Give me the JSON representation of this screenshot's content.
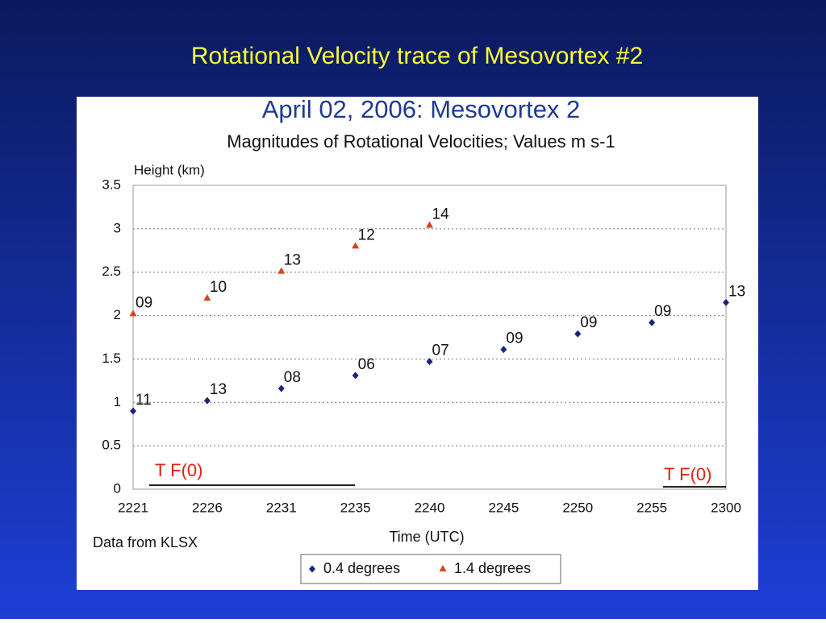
{
  "slide": {
    "title": "Rotational Velocity trace of Mesovortex #2"
  },
  "chart_data": {
    "type": "scatter",
    "title": "April 02, 2006: Mesovortex 2",
    "subtitle": "Magnitudes of Rotational Velocities; Values m s-1",
    "y_label": "Height (km)",
    "x_label": "Time (UTC)",
    "source": "Data from KLSX",
    "annotations": [
      "T F(0)",
      "T F(0)"
    ],
    "categories": [
      "2221",
      "2226",
      "2231",
      "2235",
      "2240",
      "2245",
      "2250",
      "2255",
      "2300"
    ],
    "series": [
      {
        "name": "0.4 degrees",
        "color": "#1a237e",
        "marker": "diamond",
        "values": [
          0.9,
          1.02,
          1.16,
          1.31,
          1.47,
          1.61,
          1.79,
          1.92,
          2.15
        ],
        "point_labels": [
          "11",
          "13",
          "08",
          "06",
          "07",
          "09",
          "09",
          "09",
          "13"
        ]
      },
      {
        "name": "1.4 degrees",
        "color": "#d84315",
        "marker": "triangle",
        "values": [
          2.02,
          2.2,
          2.51,
          2.8,
          3.04,
          null,
          null,
          null,
          null
        ],
        "point_labels": [
          "09",
          "10",
          "13",
          "12",
          "14",
          null,
          null,
          null,
          null
        ]
      }
    ],
    "ylim": [
      0,
      3.5
    ],
    "yticks": [
      0,
      0.5,
      1,
      1.5,
      2,
      2.5,
      3,
      3.5
    ],
    "grid": true
  }
}
